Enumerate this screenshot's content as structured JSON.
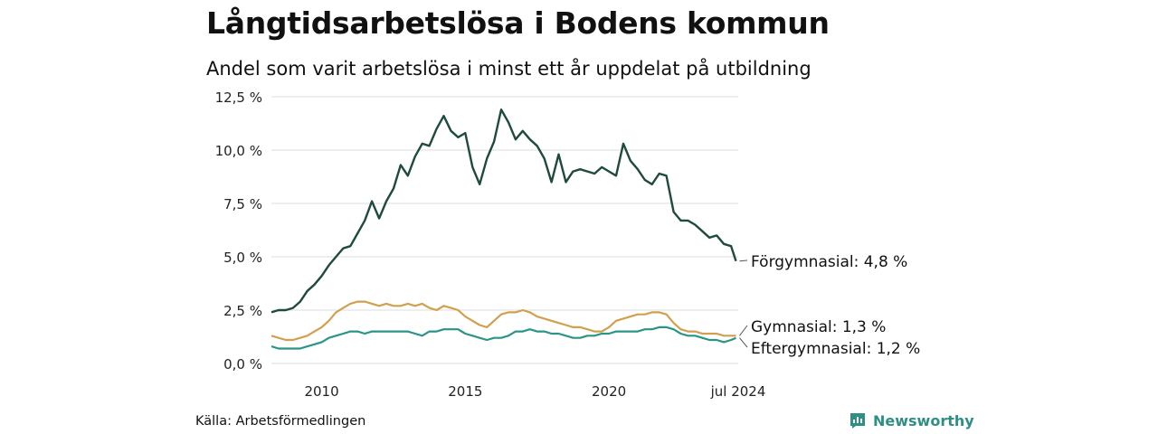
{
  "chart_data": {
    "type": "line",
    "title": "Långtidsarbetslösa i Bodens kommun",
    "subtitle": "Andel som varit arbetslösa i minst ett år uppdelat på utbildning",
    "source": "Källa: Arbetsförmedlingen",
    "brand": "Newsworthy",
    "yticks": [
      "0,0 %",
      "2,5 %",
      "5,0 %",
      "7,5 %",
      "10,0 %",
      "12,5 %"
    ],
    "ytick_values": [
      0,
      2.5,
      5,
      7.5,
      10,
      12.5
    ],
    "ylim": [
      0,
      12.5
    ],
    "xlim": [
      2008.25,
      2024.5
    ],
    "xticks": [
      {
        "value": 2010,
        "label": "2010"
      },
      {
        "value": 2015,
        "label": "2015"
      },
      {
        "value": 2020,
        "label": "2020"
      },
      {
        "value": 2024.5,
        "label": "jul 2024"
      }
    ],
    "series": [
      {
        "name": "Förgymnasial",
        "end_label": "Förgymnasial: 4,8 %",
        "color": "#1f4a40",
        "points": [
          [
            2008.25,
            2.4
          ],
          [
            2008.5,
            2.5
          ],
          [
            2008.75,
            2.5
          ],
          [
            2009.0,
            2.6
          ],
          [
            2009.25,
            2.9
          ],
          [
            2009.5,
            3.4
          ],
          [
            2009.75,
            3.7
          ],
          [
            2010.0,
            4.1
          ],
          [
            2010.25,
            4.6
          ],
          [
            2010.5,
            5.0
          ],
          [
            2010.75,
            5.4
          ],
          [
            2011.0,
            5.5
          ],
          [
            2011.25,
            6.1
          ],
          [
            2011.5,
            6.7
          ],
          [
            2011.75,
            7.6
          ],
          [
            2012.0,
            6.8
          ],
          [
            2012.25,
            7.6
          ],
          [
            2012.5,
            8.2
          ],
          [
            2012.75,
            9.3
          ],
          [
            2013.0,
            8.8
          ],
          [
            2013.25,
            9.7
          ],
          [
            2013.5,
            10.3
          ],
          [
            2013.75,
            10.2
          ],
          [
            2014.0,
            11.0
          ],
          [
            2014.25,
            11.6
          ],
          [
            2014.5,
            10.9
          ],
          [
            2014.75,
            10.6
          ],
          [
            2015.0,
            10.8
          ],
          [
            2015.25,
            9.2
          ],
          [
            2015.5,
            8.4
          ],
          [
            2015.75,
            9.6
          ],
          [
            2016.0,
            10.4
          ],
          [
            2016.25,
            11.9
          ],
          [
            2016.5,
            11.3
          ],
          [
            2016.75,
            10.5
          ],
          [
            2017.0,
            10.9
          ],
          [
            2017.25,
            10.5
          ],
          [
            2017.5,
            10.2
          ],
          [
            2017.75,
            9.6
          ],
          [
            2018.0,
            8.5
          ],
          [
            2018.25,
            9.8
          ],
          [
            2018.5,
            8.5
          ],
          [
            2018.75,
            9.0
          ],
          [
            2019.0,
            9.1
          ],
          [
            2019.25,
            9.0
          ],
          [
            2019.5,
            8.9
          ],
          [
            2019.75,
            9.2
          ],
          [
            2020.0,
            9.0
          ],
          [
            2020.25,
            8.8
          ],
          [
            2020.5,
            10.3
          ],
          [
            2020.75,
            9.5
          ],
          [
            2021.0,
            9.1
          ],
          [
            2021.25,
            8.6
          ],
          [
            2021.5,
            8.4
          ],
          [
            2021.75,
            8.9
          ],
          [
            2022.0,
            8.8
          ],
          [
            2022.25,
            7.1
          ],
          [
            2022.5,
            6.7
          ],
          [
            2022.75,
            6.7
          ],
          [
            2023.0,
            6.5
          ],
          [
            2023.25,
            6.2
          ],
          [
            2023.5,
            5.9
          ],
          [
            2023.75,
            6.0
          ],
          [
            2024.0,
            5.6
          ],
          [
            2024.25,
            5.5
          ],
          [
            2024.42,
            4.8
          ]
        ]
      },
      {
        "name": "Gymnasial",
        "end_label": "Gymnasial: 1,3 %",
        "color": "#d1a04e",
        "points": [
          [
            2008.25,
            1.3
          ],
          [
            2008.5,
            1.2
          ],
          [
            2008.75,
            1.1
          ],
          [
            2009.0,
            1.1
          ],
          [
            2009.25,
            1.2
          ],
          [
            2009.5,
            1.3
          ],
          [
            2009.75,
            1.5
          ],
          [
            2010.0,
            1.7
          ],
          [
            2010.25,
            2.0
          ],
          [
            2010.5,
            2.4
          ],
          [
            2010.75,
            2.6
          ],
          [
            2011.0,
            2.8
          ],
          [
            2011.25,
            2.9
          ],
          [
            2011.5,
            2.9
          ],
          [
            2011.75,
            2.8
          ],
          [
            2012.0,
            2.7
          ],
          [
            2012.25,
            2.8
          ],
          [
            2012.5,
            2.7
          ],
          [
            2012.75,
            2.7
          ],
          [
            2013.0,
            2.8
          ],
          [
            2013.25,
            2.7
          ],
          [
            2013.5,
            2.8
          ],
          [
            2013.75,
            2.6
          ],
          [
            2014.0,
            2.5
          ],
          [
            2014.25,
            2.7
          ],
          [
            2014.5,
            2.6
          ],
          [
            2014.75,
            2.5
          ],
          [
            2015.0,
            2.2
          ],
          [
            2015.25,
            2.0
          ],
          [
            2015.5,
            1.8
          ],
          [
            2015.75,
            1.7
          ],
          [
            2016.0,
            2.0
          ],
          [
            2016.25,
            2.3
          ],
          [
            2016.5,
            2.4
          ],
          [
            2016.75,
            2.4
          ],
          [
            2017.0,
            2.5
          ],
          [
            2017.25,
            2.4
          ],
          [
            2017.5,
            2.2
          ],
          [
            2017.75,
            2.1
          ],
          [
            2018.0,
            2.0
          ],
          [
            2018.25,
            1.9
          ],
          [
            2018.5,
            1.8
          ],
          [
            2018.75,
            1.7
          ],
          [
            2019.0,
            1.7
          ],
          [
            2019.25,
            1.6
          ],
          [
            2019.5,
            1.5
          ],
          [
            2019.75,
            1.5
          ],
          [
            2020.0,
            1.7
          ],
          [
            2020.25,
            2.0
          ],
          [
            2020.5,
            2.1
          ],
          [
            2020.75,
            2.2
          ],
          [
            2021.0,
            2.3
          ],
          [
            2021.25,
            2.3
          ],
          [
            2021.5,
            2.4
          ],
          [
            2021.75,
            2.4
          ],
          [
            2022.0,
            2.3
          ],
          [
            2022.25,
            1.9
          ],
          [
            2022.5,
            1.6
          ],
          [
            2022.75,
            1.5
          ],
          [
            2023.0,
            1.5
          ],
          [
            2023.25,
            1.4
          ],
          [
            2023.5,
            1.4
          ],
          [
            2023.75,
            1.4
          ],
          [
            2024.0,
            1.3
          ],
          [
            2024.25,
            1.3
          ],
          [
            2024.42,
            1.3
          ]
        ]
      },
      {
        "name": "Eftergymnasial",
        "end_label": "Eftergymnasial: 1,2 %",
        "color": "#2a9485",
        "points": [
          [
            2008.25,
            0.8
          ],
          [
            2008.5,
            0.7
          ],
          [
            2008.75,
            0.7
          ],
          [
            2009.0,
            0.7
          ],
          [
            2009.25,
            0.7
          ],
          [
            2009.5,
            0.8
          ],
          [
            2009.75,
            0.9
          ],
          [
            2010.0,
            1.0
          ],
          [
            2010.25,
            1.2
          ],
          [
            2010.5,
            1.3
          ],
          [
            2010.75,
            1.4
          ],
          [
            2011.0,
            1.5
          ],
          [
            2011.25,
            1.5
          ],
          [
            2011.5,
            1.4
          ],
          [
            2011.75,
            1.5
          ],
          [
            2012.0,
            1.5
          ],
          [
            2012.25,
            1.5
          ],
          [
            2012.5,
            1.5
          ],
          [
            2012.75,
            1.5
          ],
          [
            2013.0,
            1.5
          ],
          [
            2013.25,
            1.4
          ],
          [
            2013.5,
            1.3
          ],
          [
            2013.75,
            1.5
          ],
          [
            2014.0,
            1.5
          ],
          [
            2014.25,
            1.6
          ],
          [
            2014.5,
            1.6
          ],
          [
            2014.75,
            1.6
          ],
          [
            2015.0,
            1.4
          ],
          [
            2015.25,
            1.3
          ],
          [
            2015.5,
            1.2
          ],
          [
            2015.75,
            1.1
          ],
          [
            2016.0,
            1.2
          ],
          [
            2016.25,
            1.2
          ],
          [
            2016.5,
            1.3
          ],
          [
            2016.75,
            1.5
          ],
          [
            2017.0,
            1.5
          ],
          [
            2017.25,
            1.6
          ],
          [
            2017.5,
            1.5
          ],
          [
            2017.75,
            1.5
          ],
          [
            2018.0,
            1.4
          ],
          [
            2018.25,
            1.4
          ],
          [
            2018.5,
            1.3
          ],
          [
            2018.75,
            1.2
          ],
          [
            2019.0,
            1.2
          ],
          [
            2019.25,
            1.3
          ],
          [
            2019.5,
            1.3
          ],
          [
            2019.75,
            1.4
          ],
          [
            2020.0,
            1.4
          ],
          [
            2020.25,
            1.5
          ],
          [
            2020.5,
            1.5
          ],
          [
            2020.75,
            1.5
          ],
          [
            2021.0,
            1.5
          ],
          [
            2021.25,
            1.6
          ],
          [
            2021.5,
            1.6
          ],
          [
            2021.75,
            1.7
          ],
          [
            2022.0,
            1.7
          ],
          [
            2022.25,
            1.6
          ],
          [
            2022.5,
            1.4
          ],
          [
            2022.75,
            1.3
          ],
          [
            2023.0,
            1.3
          ],
          [
            2023.25,
            1.2
          ],
          [
            2023.5,
            1.1
          ],
          [
            2023.75,
            1.1
          ],
          [
            2024.0,
            1.0
          ],
          [
            2024.25,
            1.1
          ],
          [
            2024.42,
            1.2
          ]
        ]
      }
    ]
  }
}
